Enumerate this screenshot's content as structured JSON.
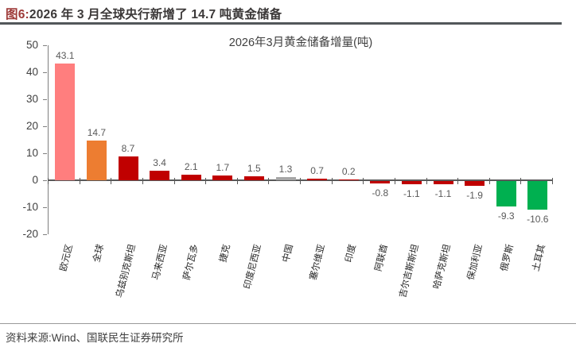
{
  "header": {
    "figure_label": "图6:",
    "title_text": "2026 年 3 月全球央行新增了 14.7 吨黄金储备"
  },
  "footer": {
    "source": "资料来源:Wind、国联民生证券研究所"
  },
  "chart_data": {
    "type": "bar",
    "title": "2026年3月黄金储备增量(吨)",
    "categories": [
      "欧元区",
      "全球",
      "乌兹别克斯坦",
      "马来西亚",
      "萨尔瓦多",
      "捷克",
      "印度尼西亚",
      "中国",
      "塞尔维亚",
      "印度",
      "阿联酋",
      "吉尔吉斯斯坦",
      "哈萨克斯坦",
      "保加利亚",
      "俄罗斯",
      "土耳其"
    ],
    "values": [
      43.1,
      14.7,
      8.7,
      3.4,
      2.1,
      1.7,
      1.5,
      1.3,
      0.7,
      0.2,
      -0.8,
      -1.1,
      -1.1,
      -1.9,
      -9.3,
      -10.6
    ],
    "bar_colors": [
      "#FF7E7E",
      "#ED7D31",
      "#C00000",
      "#C00000",
      "#C00000",
      "#C00000",
      "#C00000",
      "#A6A6A6",
      "#C00000",
      "#C00000",
      "#C00000",
      "#C00000",
      "#C00000",
      "#C00000",
      "#00B050",
      "#00B050"
    ],
    "xlabel": "",
    "ylabel": "",
    "ylim": [
      -20,
      50
    ],
    "yticks": [
      50,
      40,
      30,
      20,
      10,
      0,
      -10,
      -20
    ],
    "grid": false,
    "legend": null,
    "value_labels": true,
    "colors": {
      "salmon": "#FF7E7E",
      "orange": "#ED7D31",
      "dark_red": "#C00000",
      "gray": "#A6A6A6",
      "green": "#00B050",
      "value_label_text": "#595959",
      "axis": "#595959",
      "header_accent": "#9e3a38"
    }
  }
}
